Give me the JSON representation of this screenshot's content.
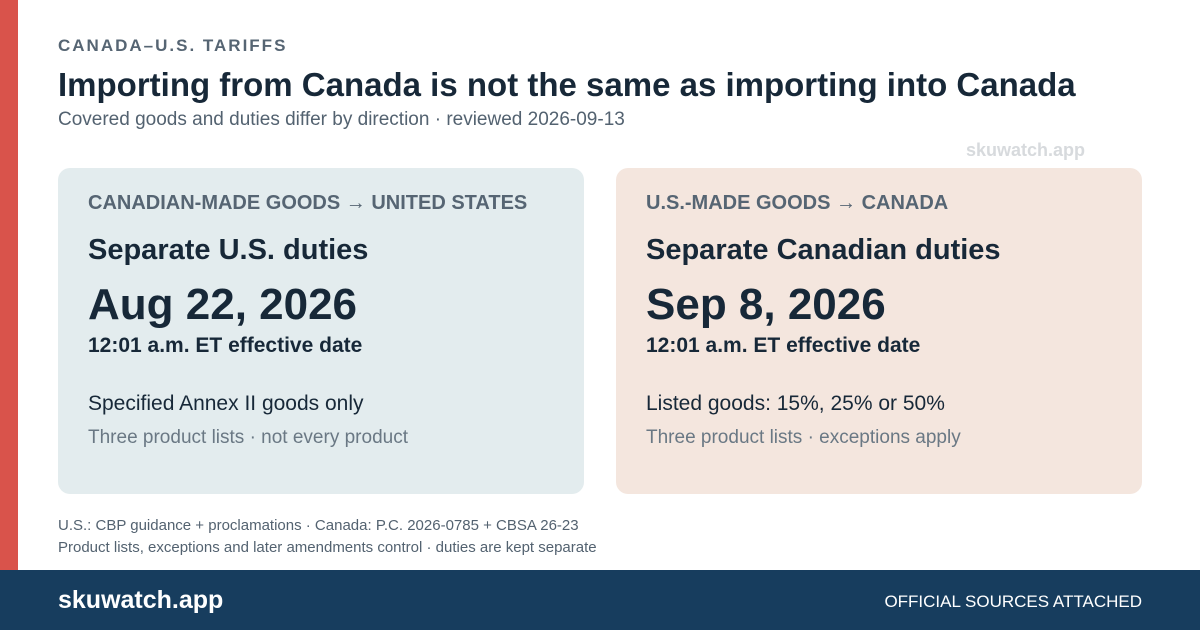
{
  "colors": {
    "accent": "#d9534b",
    "footer_bg": "#173d5e",
    "left_card_bg": "#e3ecee",
    "right_card_bg": "#f4e6de"
  },
  "header": {
    "eyebrow": "CANADA–U.S. TARIFFS",
    "title": "Importing from Canada is not the same as importing into Canada",
    "subtitle": "Covered goods and duties differ by direction · reviewed 2026-09-13"
  },
  "watermark": "skuwatch.app",
  "cards": [
    {
      "route": "CANADIAN-MADE GOODS → UNITED STATES",
      "title": "Separate U.S. duties",
      "date": "Aug 22, 2026",
      "time": "12:01 a.m. ET effective date",
      "scope": "Specified Annex II goods only",
      "note": "Three product lists · not every product"
    },
    {
      "route": "U.S.-MADE GOODS → CANADA",
      "title": "Separate Canadian duties",
      "date": "Sep 8, 2026",
      "time": "12:01 a.m. ET effective date",
      "scope": "Listed goods: 15%, 25% or 50%",
      "note": "Three product lists · exceptions apply"
    }
  ],
  "footnotes": [
    "U.S.: CBP guidance + proclamations · Canada: P.C. 2026-0785 + CBSA 26-23",
    "Product lists, exceptions and later amendments control · duties are kept separate"
  ],
  "footer": {
    "brand": "skuwatch.app",
    "sources": "OFFICIAL SOURCES ATTACHED"
  }
}
